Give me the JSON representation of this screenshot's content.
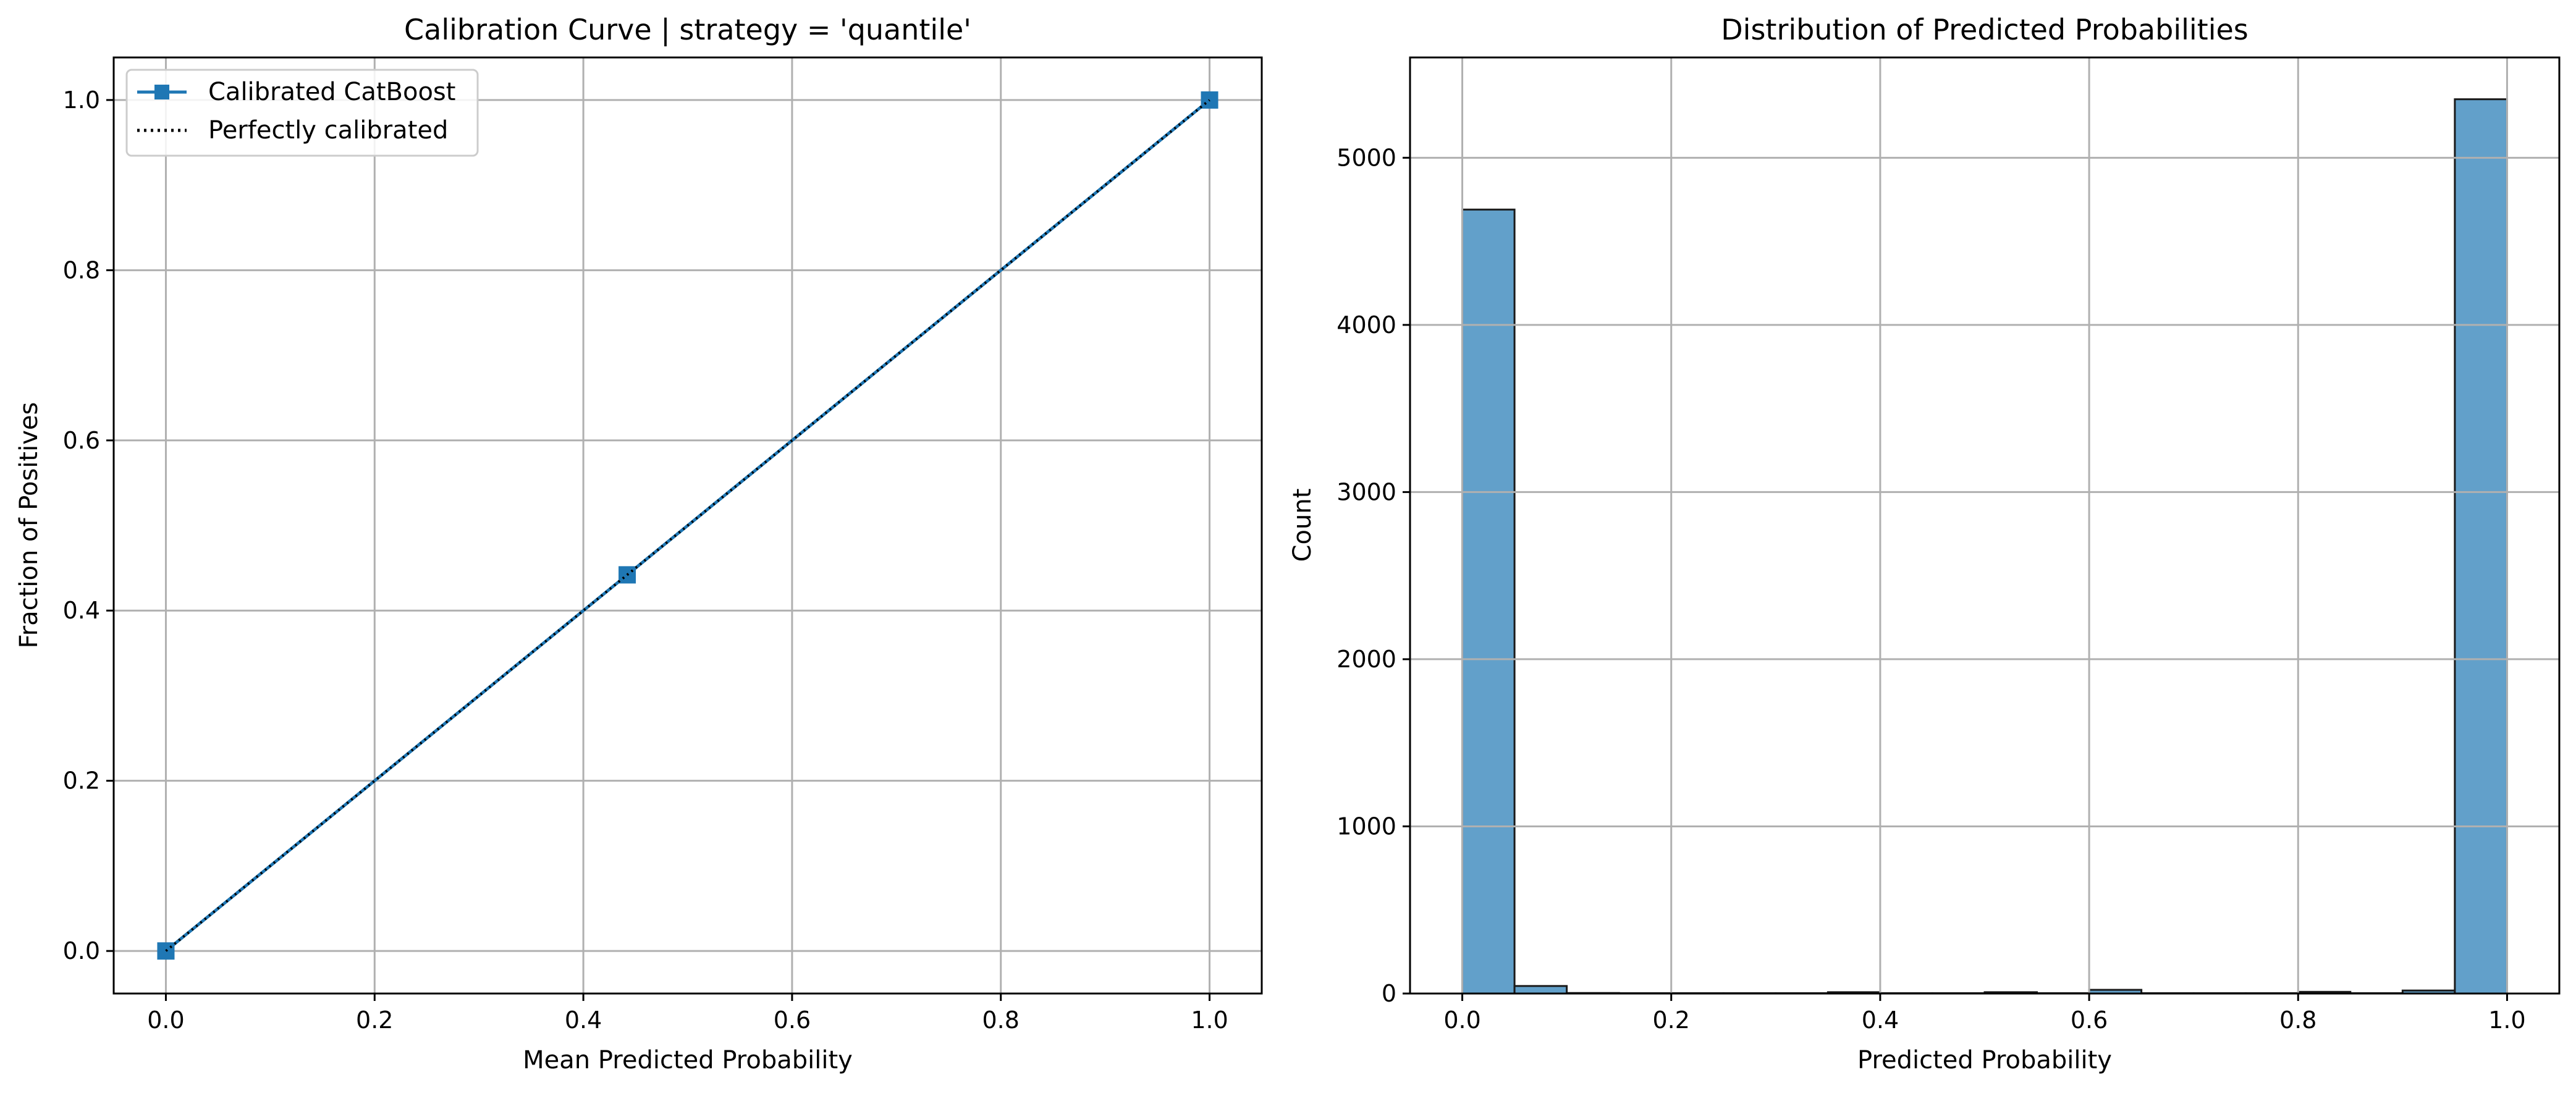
{
  "figure": {
    "background": "#ffffff",
    "grid_color": "#b0b0b0",
    "primary_color": "#1f77b4",
    "hist_fill": "#62a0ca",
    "perfect_line_color": "#000000"
  },
  "chart_data": [
    {
      "type": "line",
      "title": "Calibration Curve | strategy = 'quantile'",
      "xlabel": "Mean Predicted Probability",
      "ylabel": "Fraction of Positives",
      "xlim": [
        -0.05,
        1.05
      ],
      "ylim": [
        -0.05,
        1.05
      ],
      "xticks": [
        "0.0",
        "0.2",
        "0.4",
        "0.6",
        "0.8",
        "1.0"
      ],
      "yticks": [
        "0.0",
        "0.2",
        "0.4",
        "0.6",
        "0.8",
        "1.0"
      ],
      "grid": true,
      "legend_position": "upper-left",
      "series": [
        {
          "name": "Calibrated CatBoost",
          "style": "solid",
          "marker": "square",
          "x": [
            0.0,
            0.442,
            1.0
          ],
          "y": [
            0.0,
            0.442,
            1.0
          ]
        },
        {
          "name": "Perfectly calibrated",
          "style": "dotted",
          "marker": "none",
          "x": [
            0,
            1
          ],
          "y": [
            0,
            1
          ]
        }
      ]
    },
    {
      "type": "bar",
      "subtype": "histogram",
      "title": "Distribution of Predicted Probabilities",
      "xlabel": "Predicted Probability",
      "ylabel": "Count",
      "xlim": [
        -0.05,
        1.05
      ],
      "ylim": [
        0,
        5600
      ],
      "xticks": [
        "0.0",
        "0.2",
        "0.4",
        "0.6",
        "0.8",
        "1.0"
      ],
      "yticks": [
        "0",
        "1000",
        "2000",
        "3000",
        "4000",
        "5000"
      ],
      "grid": true,
      "bin_edges": [
        0.0,
        0.05,
        0.1,
        0.15,
        0.2,
        0.25,
        0.3,
        0.35,
        0.4,
        0.45,
        0.5,
        0.55,
        0.6,
        0.65,
        0.7,
        0.75,
        0.8,
        0.85,
        0.9,
        0.95,
        1.0
      ],
      "values": [
        4690,
        45,
        3,
        2,
        2,
        2,
        2,
        8,
        2,
        2,
        8,
        2,
        22,
        2,
        2,
        2,
        10,
        2,
        18,
        5350
      ]
    }
  ]
}
